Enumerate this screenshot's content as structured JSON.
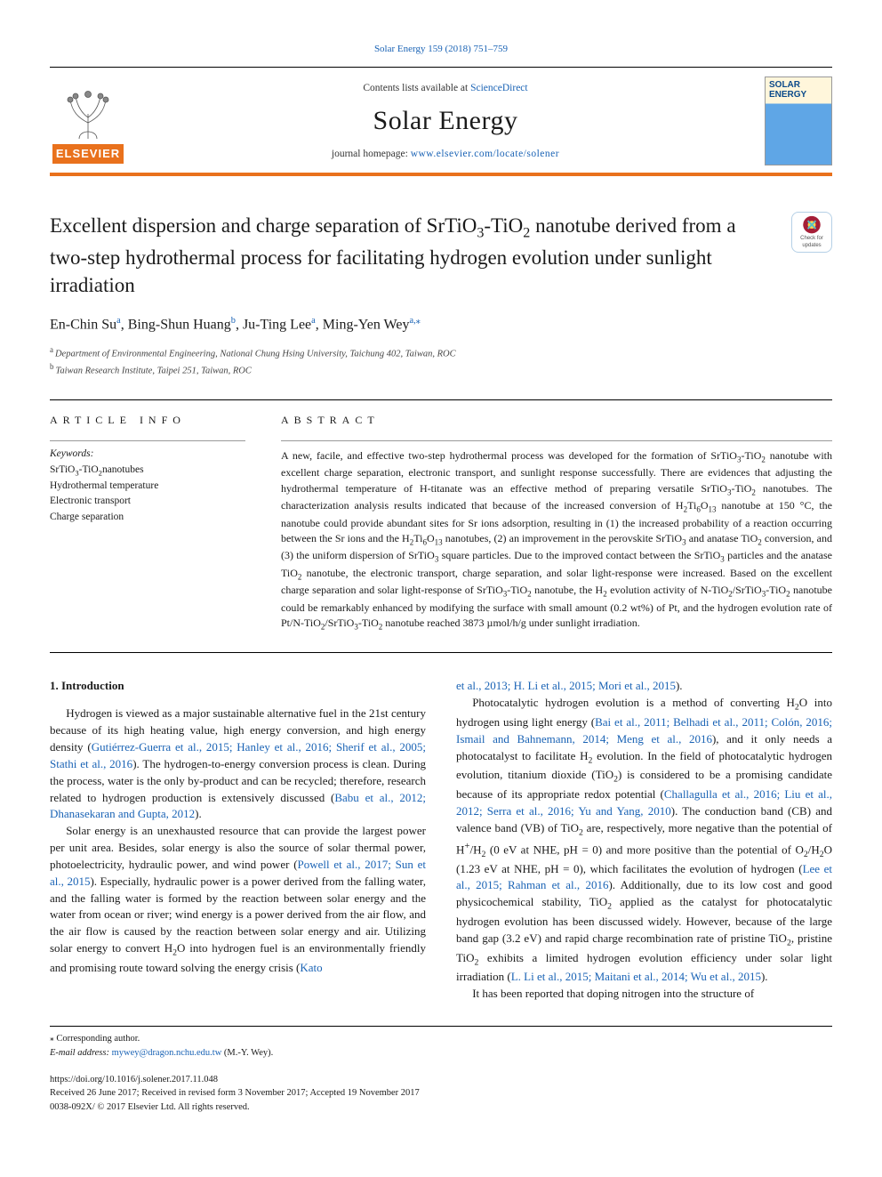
{
  "citation_line_prefix": "Solar Energy 159 (2018) 751–759",
  "citation_link_text": "Solar Energy 159 (2018) 751–759",
  "masthead": {
    "contents_text": "Contents lists available at ",
    "contents_link": "ScienceDirect",
    "journal_name": "Solar Energy",
    "homepage_label": "journal homepage: ",
    "homepage_link": "www.elsevier.com/locate/solener",
    "publisher_brand": "ELSEVIER",
    "cover_title_line1": "SOLAR",
    "cover_title_line2": "ENERGY"
  },
  "check_badge": {
    "line1": "Check for",
    "line2": "updates",
    "mark_bg": "#a51e37",
    "mark_fg": "#ffd54a"
  },
  "title_html": "Excellent dispersion and charge separation of SrTiO<sub>3</sub>-TiO<sub>2</sub> nanotube derived from a two-step hydrothermal process for facilitating hydrogen evolution under sunlight irradiation",
  "authors_html": "En-Chin Su<sup><a>a</a></sup>, Bing-Shun Huang<sup><a>b</a></sup>, Ju-Ting Lee<sup><a>a</a></sup>, Ming-Yen Wey<sup><a>a,</a></sup><sup><a>⁎</a></sup>",
  "affiliations": [
    {
      "mark": "a",
      "text": "Department of Environmental Engineering, National Chung Hsing University, Taichung 402, Taiwan, ROC"
    },
    {
      "mark": "b",
      "text": "Taiwan Research Institute, Taipei 251, Taiwan, ROC"
    }
  ],
  "info": {
    "left_head": "ARTICLE INFO",
    "right_head": "ABSTRACT",
    "kw_label": "Keywords:",
    "keywords_html": "SrTiO<sub>3</sub>-TiO<sub>2</sub>nanotubes<br>Hydrothermal temperature<br>Electronic transport<br>Charge separation",
    "abstract_html": "A new, facile, and effective two-step hydrothermal process was developed for the formation of SrTiO<sub>3</sub>-TiO<sub>2</sub> nanotube with excellent charge separation, electronic transport, and sunlight response successfully. There are evidences that adjusting the hydrothermal temperature of H-titanate was an effective method of preparing versatile SrTiO<sub>3</sub>-TiO<sub>2</sub> nanotubes. The characterization analysis results indicated that because of the increased conversion of H<sub>2</sub>Ti<sub>6</sub>O<sub>13</sub> nanotube at 150 °C, the nanotube could provide abundant sites for Sr ions adsorption, resulting in (1) the increased probability of a reaction occurring between the Sr ions and the H<sub>2</sub>Ti<sub>6</sub>O<sub>13</sub> nanotubes, (2) an improvement in the perovskite SrTiO<sub>3</sub> and anatase TiO<sub>2</sub> conversion, and (3) the uniform dispersion of SrTiO<sub>3</sub> square particles. Due to the improved contact between the SrTiO<sub>3</sub> particles and the anatase TiO<sub>2</sub> nanotube, the electronic transport, charge separation, and solar light-response were increased. Based on the excellent charge separation and solar light-response of SrTiO<sub>3</sub>-TiO<sub>2</sub> nanotube, the H<sub>2</sub> evolution activity of N-TiO<sub>2</sub>/SrTiO<sub>3</sub>-TiO<sub>2</sub> nanotube could be remarkably enhanced by modifying the surface with small amount (0.2 wt%) of Pt, and the hydrogen evolution rate of Pt/N-TiO<sub>2</sub>/SrTiO<sub>3</sub>-TiO<sub>2</sub> nanotube reached 3873 µmol/h/g under sunlight irradiation."
  },
  "section1": {
    "heading": "1. Introduction",
    "left_paras_html": [
      "Hydrogen is viewed as a major sustainable alternative fuel in the 21st century because of its high heating value, high energy conversion, and high energy density (<a class=\"ref\">Gutiérrez-Guerra et al., 2015; Hanley et al., 2016; Sherif et al., 2005; Stathi et al., 2016</a>). The hydrogen-to-energy conversion process is clean. During the process, water is the only by-product and can be recycled; therefore, research related to hydrogen production is extensively discussed (<a class=\"ref\">Babu et al., 2012; Dhanasekaran and Gupta, 2012</a>).",
      "Solar energy is an unexhausted resource that can provide the largest power per unit area. Besides, solar energy is also the source of solar thermal power, photoelectricity, hydraulic power, and wind power (<a class=\"ref\">Powell et al., 2017; Sun et al., 2015</a>). Especially, hydraulic power is a power derived from the falling water, and the falling water is formed by the reaction between solar energy and the water from ocean or river; wind energy is a power derived from the air flow, and the air flow is caused by the reaction between solar energy and air. Utilizing solar energy to convert H<sub>2</sub>O into hydrogen fuel is an environmentally friendly and promising route toward solving the energy crisis (<a class=\"ref\">Kato</a>"
    ],
    "right_paras_html": [
      "<a class=\"ref\">et al., 2013; H. Li et al., 2015; Mori et al., 2015</a>).",
      "Photocatalytic hydrogen evolution is a method of converting H<sub>2</sub>O into hydrogen using light energy (<a class=\"ref\">Bai et al., 2011; Belhadi et al., 2011; Colón, 2016; Ismail and Bahnemann, 2014; Meng et al., 2016</a>), and it only needs a photocatalyst to facilitate H<sub>2</sub> evolution. In the field of photocatalytic hydrogen evolution, titanium dioxide (TiO<sub>2</sub>) is considered to be a promising candidate because of its appropriate redox potential (<a class=\"ref\">Challagulla et al., 2016; Liu et al., 2012; Serra et al., 2016; Yu and Yang, 2010</a>). The conduction band (CB) and valence band (VB) of TiO<sub>2</sub> are, respectively, more negative than the potential of H<sup>+</sup>/H<sub>2</sub> (0 eV at NHE, pH = 0) and more positive than the potential of O<sub>2</sub>/H<sub>2</sub>O (1.23 eV at NHE, pH = 0), which facilitates the evolution of hydrogen (<a class=\"ref\">Lee et al., 2015; Rahman et al., 2016</a>). Additionally, due to its low cost and good physicochemical stability, TiO<sub>2</sub> applied as the catalyst for photocatalytic hydrogen evolution has been discussed widely. However, because of the large band gap (3.2 eV) and rapid charge recombination rate of pristine TiO<sub>2</sub>, pristine TiO<sub>2</sub> exhibits a limited hydrogen evolution efficiency under solar light irradiation (<a class=\"ref\">L. Li et al., 2015; Maitani et al., 2014; Wu et al., 2015</a>).",
      "It has been reported that doping nitrogen into the structure of"
    ]
  },
  "footer": {
    "corr_mark": "⁎",
    "corr_text": "Corresponding author.",
    "email_label": "E-mail address: ",
    "email": "mywey@dragon.nchu.edu.tw",
    "email_suffix": " (M.-Y. Wey).",
    "doi": "https://doi.org/10.1016/j.solener.2017.11.048",
    "history": "Received 26 June 2017; Received in revised form 3 November 2017; Accepted 19 November 2017",
    "issn_copyright": "0038-092X/ © 2017 Elsevier Ltd. All rights reserved."
  },
  "colors": {
    "link": "#1a63b5",
    "accent": "#e9711c",
    "text": "#1a1a1a"
  }
}
